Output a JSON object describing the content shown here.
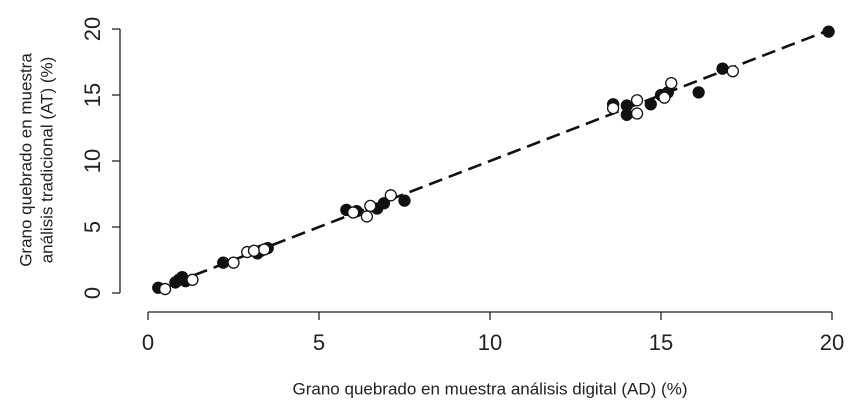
{
  "chart_data": {
    "type": "scatter",
    "x_label": "Grano quebrado en muestra análisis digital (AD) (%)",
    "y_label": [
      "Grano quebrado en muestra",
      "análisis tradicional (AT) (%)"
    ],
    "xlim": [
      0,
      20
    ],
    "ylim": [
      0,
      20
    ],
    "xticks": [
      0,
      5,
      10,
      15,
      20
    ],
    "yticks": [
      0,
      5,
      10,
      15,
      20
    ],
    "grid": false,
    "series": [
      {
        "marker": "filled",
        "color": "#111111",
        "x": [
          0.3,
          0.8,
          0.9,
          1.0,
          1.1,
          2.2,
          3.2,
          3.3,
          3.5,
          5.8,
          6.1,
          6.7,
          6.9,
          7.5,
          13.6,
          14.0,
          14.0,
          14.7,
          15.0,
          15.2,
          16.1,
          16.8,
          19.9
        ],
        "y": [
          0.4,
          0.8,
          1.0,
          1.2,
          0.9,
          2.3,
          3.0,
          3.2,
          3.4,
          6.3,
          6.2,
          6.4,
          6.8,
          7.0,
          14.3,
          14.2,
          13.5,
          14.3,
          15.0,
          15.2,
          15.2,
          17.0,
          19.8
        ]
      },
      {
        "marker": "open",
        "color": "#111111",
        "x": [
          0.5,
          1.3,
          2.5,
          2.9,
          3.1,
          3.4,
          6.0,
          6.4,
          6.5,
          7.1,
          13.6,
          14.3,
          14.3,
          15.1,
          15.3,
          17.1
        ],
        "y": [
          0.3,
          1.0,
          2.3,
          3.1,
          3.2,
          3.3,
          6.1,
          5.8,
          6.6,
          7.4,
          14.0,
          14.6,
          13.6,
          14.8,
          15.9,
          16.8
        ]
      }
    ],
    "fit_line": {
      "style": "dashed",
      "color": "#111111",
      "x": [
        0.2,
        20
      ],
      "y": [
        0.2,
        20
      ]
    }
  }
}
